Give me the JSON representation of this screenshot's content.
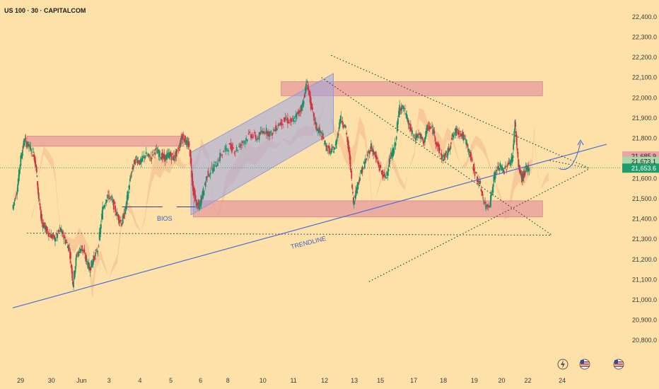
{
  "chart_data": {
    "type": "candlestick",
    "title": "US 100 · 30 · CAPITALCOM",
    "symbol": "US 100",
    "interval": "30",
    "source": "CAPITALCOM",
    "y_axis": {
      "min": 20750,
      "max": 22480,
      "ticks": [
        22400,
        22300,
        22200,
        22100,
        22000,
        21900,
        21800,
        21700,
        21600,
        21500,
        21400,
        21300,
        21200,
        21100,
        21000,
        20900,
        20800
      ],
      "tick_labels": [
        "22,400.0",
        "22,300.0",
        "22,200.0",
        "22,100.0",
        "22,000.0",
        "21,900.0",
        "21,800.0",
        "21,700.0",
        "21,600.0",
        "21,500.0",
        "21,400.0",
        "21,300.0",
        "21,200.0",
        "21,100.0",
        "21,000.0",
        "20,900.0",
        "20,800.0"
      ]
    },
    "x_axis": {
      "min": 0,
      "max": 26,
      "ticks": [
        {
          "pos": 0.3,
          "label": "29"
        },
        {
          "pos": 1.6,
          "label": "30"
        },
        {
          "pos": 2.8,
          "label": "Jun"
        },
        {
          "pos": 4.1,
          "label": "3"
        },
        {
          "pos": 5.4,
          "label": "4"
        },
        {
          "pos": 6.7,
          "label": "5"
        },
        {
          "pos": 7.95,
          "label": "6"
        },
        {
          "pos": 9.1,
          "label": "8"
        },
        {
          "pos": 10.5,
          "label": "10"
        },
        {
          "pos": 11.8,
          "label": "11"
        },
        {
          "pos": 13.1,
          "label": "12"
        },
        {
          "pos": 14.35,
          "label": "13"
        },
        {
          "pos": 15.45,
          "label": "15"
        },
        {
          "pos": 16.85,
          "label": "17"
        },
        {
          "pos": 18.1,
          "label": "18"
        },
        {
          "pos": 19.4,
          "label": "19"
        },
        {
          "pos": 20.55,
          "label": "20"
        },
        {
          "pos": 21.65,
          "label": "22"
        },
        {
          "pos": 23.1,
          "label": "24"
        }
      ]
    },
    "price_badges": [
      {
        "value": 21685.9,
        "label": "21,685.9",
        "color": "#e7a3a6",
        "text": "dark"
      },
      {
        "value": 21673.1,
        "label": "21,673.1",
        "color": "#a9d8a8",
        "text": "dark"
      },
      {
        "value": 21653.6,
        "label": "21,653.6",
        "color": "#1f9e6b",
        "text": "light"
      }
    ],
    "price_path": [
      [
        0.0,
        21450
      ],
      [
        0.2,
        21550
      ],
      [
        0.35,
        21700
      ],
      [
        0.5,
        21790
      ],
      [
        0.7,
        21760
      ],
      [
        0.9,
        21720
      ],
      [
        1.0,
        21650
      ],
      [
        1.1,
        21500
      ],
      [
        1.25,
        21380
      ],
      [
        1.4,
        21350
      ],
      [
        1.6,
        21320
      ],
      [
        1.8,
        21300
      ],
      [
        2.0,
        21350
      ],
      [
        2.2,
        21300
      ],
      [
        2.4,
        21250
      ],
      [
        2.55,
        21080
      ],
      [
        2.7,
        21220
      ],
      [
        2.9,
        21260
      ],
      [
        3.1,
        21200
      ],
      [
        3.25,
        21150
      ],
      [
        3.4,
        21200
      ],
      [
        3.6,
        21250
      ],
      [
        3.8,
        21450
      ],
      [
        4.0,
        21520
      ],
      [
        4.2,
        21490
      ],
      [
        4.4,
        21420
      ],
      [
        4.6,
        21380
      ],
      [
        4.75,
        21440
      ],
      [
        4.9,
        21560
      ],
      [
        5.05,
        21650
      ],
      [
        5.2,
        21700
      ],
      [
        5.4,
        21680
      ],
      [
        5.6,
        21720
      ],
      [
        5.8,
        21700
      ],
      [
        6.0,
        21740
      ],
      [
        6.2,
        21720
      ],
      [
        6.4,
        21700
      ],
      [
        6.6,
        21720
      ],
      [
        6.8,
        21700
      ],
      [
        7.0,
        21750
      ],
      [
        7.15,
        21820
      ],
      [
        7.3,
        21780
      ],
      [
        7.45,
        21760
      ],
      [
        7.6,
        21550
      ],
      [
        7.75,
        21470
      ],
      [
        7.85,
        21460
      ],
      [
        8.0,
        21520
      ],
      [
        8.2,
        21620
      ],
      [
        8.5,
        21660
      ],
      [
        8.8,
        21720
      ],
      [
        9.1,
        21760
      ],
      [
        9.4,
        21740
      ],
      [
        9.7,
        21780
      ],
      [
        10.0,
        21820
      ],
      [
        10.3,
        21800
      ],
      [
        10.6,
        21840
      ],
      [
        10.9,
        21820
      ],
      [
        11.2,
        21870
      ],
      [
        11.5,
        21890
      ],
      [
        11.8,
        21880
      ],
      [
        12.0,
        21920
      ],
      [
        12.2,
        21960
      ],
      [
        12.4,
        22080
      ],
      [
        12.6,
        21940
      ],
      [
        12.8,
        21850
      ],
      [
        13.0,
        21820
      ],
      [
        13.2,
        21760
      ],
      [
        13.4,
        21730
      ],
      [
        13.6,
        21760
      ],
      [
        13.8,
        21900
      ],
      [
        14.0,
        21860
      ],
      [
        14.2,
        21700
      ],
      [
        14.35,
        21480
      ],
      [
        14.5,
        21560
      ],
      [
        14.7,
        21640
      ],
      [
        14.9,
        21700
      ],
      [
        15.1,
        21760
      ],
      [
        15.3,
        21700
      ],
      [
        15.5,
        21640
      ],
      [
        15.7,
        21600
      ],
      [
        15.9,
        21700
      ],
      [
        16.1,
        21760
      ],
      [
        16.3,
        21960
      ],
      [
        16.5,
        21940
      ],
      [
        16.7,
        21860
      ],
      [
        16.9,
        21800
      ],
      [
        17.1,
        21820
      ],
      [
        17.3,
        21780
      ],
      [
        17.5,
        21860
      ],
      [
        17.7,
        21840
      ],
      [
        17.9,
        21760
      ],
      [
        18.1,
        21700
      ],
      [
        18.3,
        21720
      ],
      [
        18.5,
        21800
      ],
      [
        18.7,
        21840
      ],
      [
        18.9,
        21820
      ],
      [
        19.1,
        21780
      ],
      [
        19.3,
        21700
      ],
      [
        19.5,
        21620
      ],
      [
        19.7,
        21560
      ],
      [
        19.9,
        21460
      ],
      [
        20.1,
        21480
      ],
      [
        20.3,
        21620
      ],
      [
        20.5,
        21660
      ],
      [
        20.7,
        21640
      ],
      [
        20.9,
        21680
      ],
      [
        21.05,
        21700
      ],
      [
        21.15,
        21880
      ],
      [
        21.3,
        21660
      ],
      [
        21.45,
        21600
      ],
      [
        21.6,
        21640
      ],
      [
        21.75,
        21660
      ]
    ],
    "zones": [
      {
        "name": "upper-left-supply",
        "x0": 0.6,
        "x1": 7.2,
        "y0": 21760,
        "y1": 21810,
        "color": "#e79a9e"
      },
      {
        "name": "top-supply",
        "x0": 11.3,
        "x1": 22.3,
        "y0": 22010,
        "y1": 22080,
        "color": "#e79a9e"
      },
      {
        "name": "demand-zone",
        "x0": 7.6,
        "x1": 22.3,
        "y0": 21410,
        "y1": 21490,
        "color": "#e79a9e"
      }
    ],
    "annotations": [
      {
        "name": "trendline",
        "label": "TRENDLINE"
      },
      {
        "name": "bios",
        "label": "BIOS"
      }
    ]
  }
}
